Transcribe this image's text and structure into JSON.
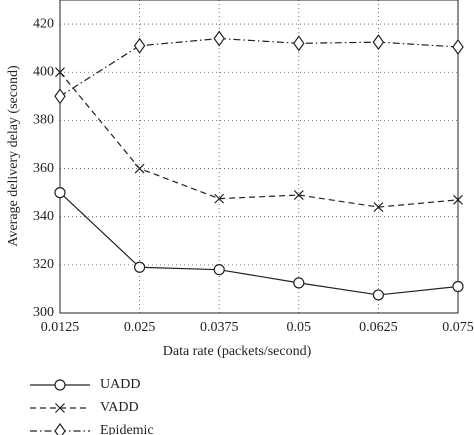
{
  "chart_data": {
    "type": "line",
    "x_label": "Data rate (packets/second)",
    "y_label": "Average delivery delay (second)",
    "x": [
      0.0125,
      0.025,
      0.0375,
      0.05,
      0.0625,
      0.075
    ],
    "series": [
      {
        "name": "UADD",
        "color": "#222222",
        "dash": "solid",
        "marker": "circle",
        "values": [
          350,
          319,
          318,
          312.5,
          307.5,
          311
        ]
      },
      {
        "name": "VADD",
        "color": "#222222",
        "dash": "dashed",
        "marker": "x",
        "values": [
          400,
          360,
          347.5,
          349,
          344,
          347
        ]
      },
      {
        "name": "Epidemic",
        "color": "#222222",
        "dash": "dashdot",
        "marker": "diamond",
        "values": [
          390,
          411,
          414,
          412,
          412.5,
          410.5
        ]
      }
    ],
    "xlim": [
      0.0125,
      0.075
    ],
    "xticks": [
      0.0125,
      0.025,
      0.0375,
      0.05,
      0.0625,
      0.075
    ],
    "ylim": [
      300,
      430
    ],
    "yticks": [
      300,
      320,
      340,
      360,
      380,
      400,
      420
    ],
    "grid": true,
    "legend": "below"
  }
}
